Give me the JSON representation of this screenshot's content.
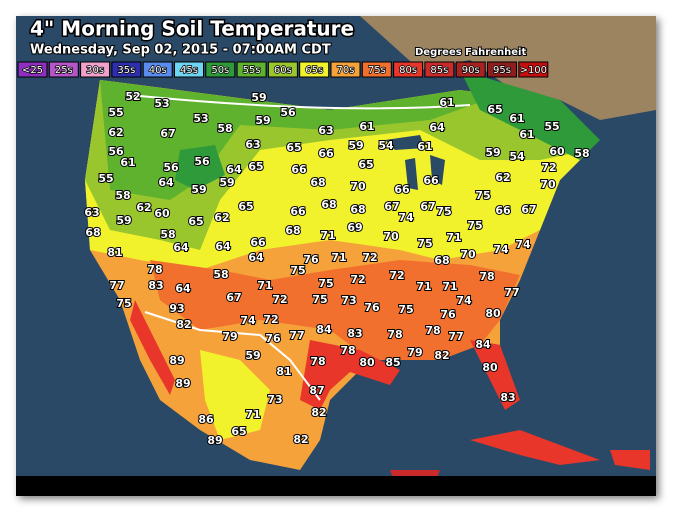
{
  "header": {
    "title": "4\" Morning Soil Temperature",
    "subtitle": "Wednesday, Sep 02, 2015 - 07:00AM CDT",
    "units": "Degrees Fahrenheit"
  },
  "legend": [
    {
      "label": "<25",
      "color": "#8e2fbf"
    },
    {
      "label": "25s",
      "color": "#b455c8"
    },
    {
      "label": "30s",
      "color": "#f2a0cc"
    },
    {
      "label": "35s",
      "color": "#2e2fb0"
    },
    {
      "label": "40s",
      "color": "#5a8cf0"
    },
    {
      "label": "45s",
      "color": "#6ed6f2"
    },
    {
      "label": "50s",
      "color": "#2f9a3a"
    },
    {
      "label": "55s",
      "color": "#5fb22e"
    },
    {
      "label": "60s",
      "color": "#98c62c"
    },
    {
      "label": "65s",
      "color": "#f2f22c"
    },
    {
      "label": "70s",
      "color": "#f5a23a"
    },
    {
      "label": "75s",
      "color": "#f2702e"
    },
    {
      "label": "80s",
      "color": "#e8362a"
    },
    {
      "label": "85s",
      "color": "#c92a2a"
    },
    {
      "label": "90s",
      "color": "#a82222"
    },
    {
      "label": "95s",
      "color": "#8e1e1e"
    },
    {
      "label": ">100",
      "color": "#c40f0f"
    }
  ],
  "stations": [
    52,
    53,
    59,
    56,
    59,
    53,
    58,
    63,
    61,
    61,
    65,
    61,
    64,
    55,
    62,
    67,
    56,
    61,
    63,
    65,
    66,
    59,
    54,
    61,
    56,
    56,
    64,
    65,
    66,
    65,
    59,
    54,
    61,
    55,
    60,
    58,
    55,
    64,
    59,
    59,
    68,
    70,
    66,
    66,
    62,
    72,
    70,
    58,
    62,
    60,
    65,
    62,
    65,
    66,
    68,
    68,
    67,
    74,
    67,
    75,
    75,
    66,
    67,
    63,
    59,
    68,
    58,
    64,
    64,
    66,
    64,
    68,
    71,
    69,
    70,
    75,
    71,
    75,
    74,
    74,
    81,
    76,
    71,
    72,
    68,
    70,
    78,
    58,
    75,
    75,
    72,
    72,
    78,
    77,
    83,
    64,
    71,
    67,
    72,
    75,
    73,
    76,
    75,
    71,
    71,
    74,
    77,
    75,
    93,
    74,
    72,
    77,
    84,
    83,
    78,
    78,
    77,
    76,
    80,
    82,
    79,
    76,
    78,
    78,
    80,
    85,
    79,
    82,
    84,
    89,
    59,
    81,
    80,
    89,
    87,
    73,
    83,
    82,
    71,
    86,
    65,
    89,
    82
  ]
}
